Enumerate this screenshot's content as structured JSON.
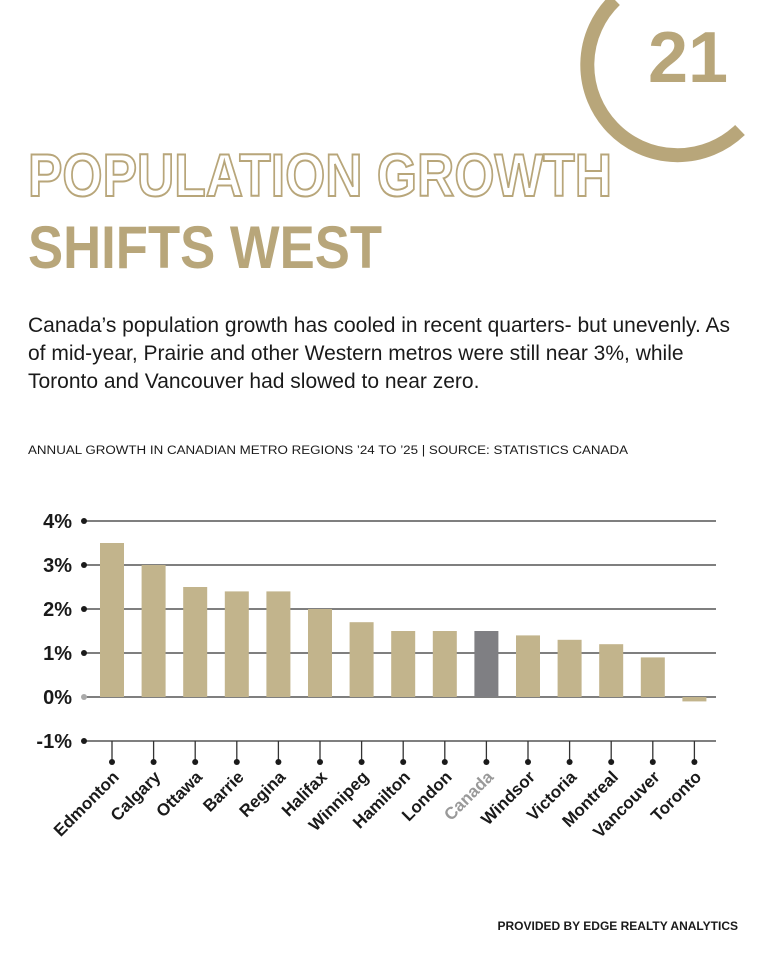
{
  "logo": "21",
  "title_line1": "POPULATION GROWTH",
  "title_line2": "SHIFTS WEST",
  "intro": "Canada’s population growth has cooled in recent quarters- but unevenly. As of mid-year, Prairie and other Western metros were still near 3%, while Toronto and Vancouver had slowed to near zero.",
  "footer": "PROVIDED BY EDGE REALTY ANALYTICS",
  "chart_data": {
    "type": "bar",
    "title": "ANNUAL GROWTH IN CANADIAN METRO REGIONS ’24 TO ’25 | SOURCE: STATISTICS CANADA",
    "categories": [
      "Edmonton",
      "Calgary",
      "Ottawa",
      "Barrie",
      "Regina",
      "Halifax",
      "Winnipeg",
      "Hamilton",
      "London",
      "Canada",
      "Windsor",
      "Victoria",
      "Montreal",
      "Vancouver",
      "Toronto"
    ],
    "values": [
      3.5,
      3.0,
      2.5,
      2.4,
      2.4,
      2.0,
      1.7,
      1.5,
      1.5,
      1.5,
      1.4,
      1.3,
      1.2,
      0.9,
      -0.1
    ],
    "colors": [
      "#c2b48c",
      "#c2b48c",
      "#c2b48c",
      "#c2b48c",
      "#c2b48c",
      "#c2b48c",
      "#c2b48c",
      "#c2b48c",
      "#c2b48c",
      "#7f7f83",
      "#c2b48c",
      "#c2b48c",
      "#c2b48c",
      "#c2b48c",
      "#c2b48c"
    ],
    "ylim": [
      -1,
      4
    ],
    "yticks": [
      {
        "value": -1,
        "label": "-1%"
      },
      {
        "value": 0,
        "label": "0%"
      },
      {
        "value": 1,
        "label": "1%"
      },
      {
        "value": 2,
        "label": "2%"
      },
      {
        "value": 3,
        "label": "3%"
      },
      {
        "value": 4,
        "label": "4%"
      }
    ],
    "grid": true
  }
}
